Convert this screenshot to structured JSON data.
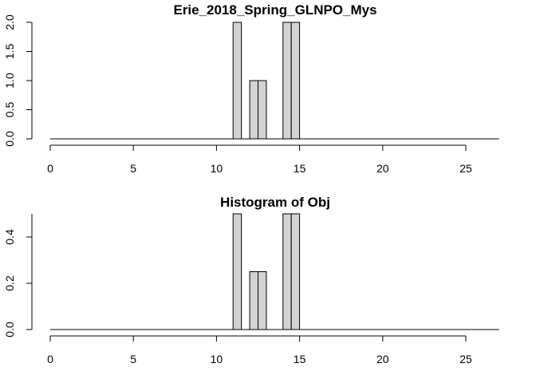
{
  "chart_data": [
    {
      "type": "bar",
      "title": "Erie_2018_Spring_GLNPO_Mys",
      "xlabel": "",
      "ylabel": "",
      "xlim": [
        0,
        27
      ],
      "ylim": [
        0,
        2
      ],
      "x_ticks": [
        "0",
        "5",
        "10",
        "15",
        "20",
        "25"
      ],
      "y_ticks": [
        "0.0",
        "0.5",
        "1.0",
        "1.5",
        "2.0"
      ],
      "bins": [
        {
          "start": 11,
          "end": 11.5,
          "value": 2
        },
        {
          "start": 12,
          "end": 12.5,
          "value": 1
        },
        {
          "start": 12.5,
          "end": 13,
          "value": 1
        },
        {
          "start": 14,
          "end": 14.5,
          "value": 2
        },
        {
          "start": 14.5,
          "end": 15,
          "value": 2
        }
      ],
      "bar_color": "#d3d3d3",
      "grid": false
    },
    {
      "type": "bar",
      "title": "Histogram of Obj",
      "xlabel": "",
      "ylabel": "",
      "xlim": [
        0,
        27
      ],
      "ylim": [
        0,
        0.5
      ],
      "x_ticks": [
        "0",
        "5",
        "10",
        "15",
        "20",
        "25"
      ],
      "y_ticks": [
        "0.0",
        "0.2",
        "0.4"
      ],
      "bins": [
        {
          "start": 11,
          "end": 11.5,
          "value": 0.5
        },
        {
          "start": 12,
          "end": 12.5,
          "value": 0.25
        },
        {
          "start": 12.5,
          "end": 13,
          "value": 0.25
        },
        {
          "start": 14,
          "end": 14.5,
          "value": 0.5
        },
        {
          "start": 14.5,
          "end": 15,
          "value": 0.5
        }
      ],
      "bar_color": "#d3d3d3",
      "grid": false
    }
  ]
}
